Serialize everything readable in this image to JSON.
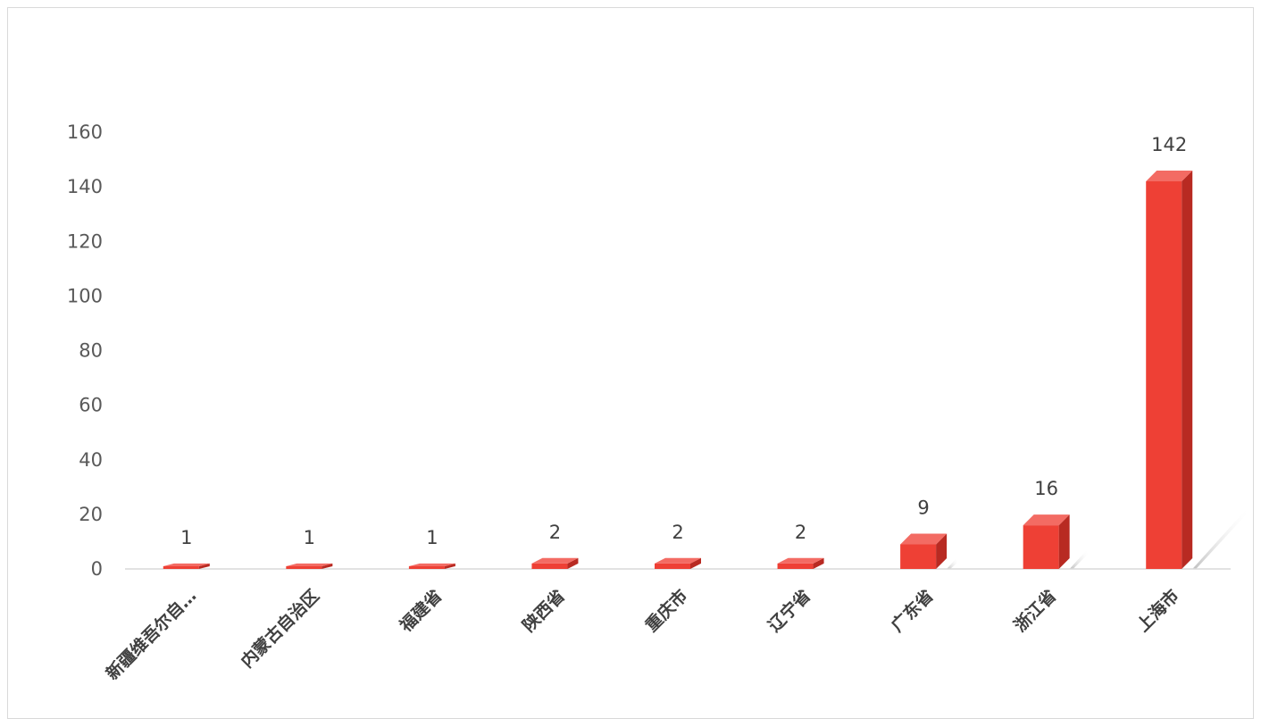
{
  "chart_data": {
    "type": "bar",
    "categories": [
      "新疆维吾尔自…",
      "内蒙古自治区",
      "福建省",
      "陕西省",
      "重庆市",
      "辽宁省",
      "广东省",
      "浙江省",
      "上海市"
    ],
    "values": [
      1,
      1,
      1,
      2,
      2,
      2,
      9,
      16,
      142
    ],
    "data_labels": [
      "1",
      "1",
      "1",
      "2",
      "2",
      "2",
      "9",
      "16",
      "142"
    ],
    "ylim": [
      0,
      160
    ],
    "yticks": [
      "0",
      "20",
      "40",
      "60",
      "80",
      "100",
      "120",
      "140",
      "160"
    ],
    "grid": false,
    "legend": "none",
    "colors": {
      "bar_front": "#ee4035",
      "bar_side": "#b82a22",
      "bar_top": "#f36b63",
      "axis": "#d9d9d9"
    }
  }
}
